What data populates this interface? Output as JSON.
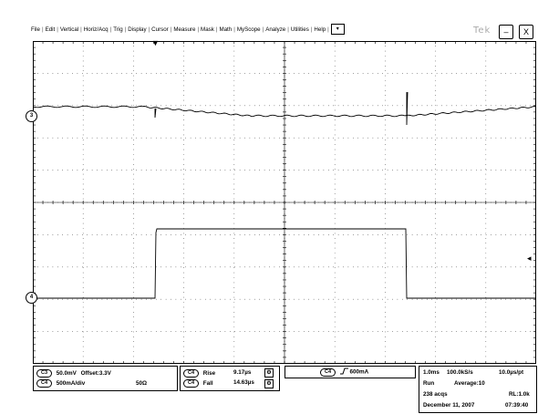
{
  "menu": {
    "items": [
      "File",
      "Edit",
      "Vertical",
      "Horiz/Acq",
      "Trig",
      "Display",
      "Cursor",
      "Measure",
      "Mask",
      "Math",
      "MyScope",
      "Analyze",
      "Utilities",
      "Help"
    ],
    "dropdown_glyph": "▾"
  },
  "brand": "Tek",
  "window_buttons": {
    "minimize": "–",
    "close": "X"
  },
  "markers": {
    "ch3": "3",
    "ch4": "4",
    "trigger_position": "▼",
    "trigger_level": "◂"
  },
  "colors": {
    "trace": "#000000",
    "grid": "#000000",
    "background": "#ffffff"
  },
  "channels": {
    "c3": {
      "tag": "C3",
      "scale": "50.0mV",
      "offset": "Offset:3.3V"
    },
    "c4": {
      "tag": "C4",
      "scale": "500mA/div",
      "impedance": "50Ω"
    }
  },
  "measurements": [
    {
      "tag": "C4",
      "name": "Rise",
      "value": "9.17µs"
    },
    {
      "tag": "C4",
      "name": "Fall",
      "value": "14.63µs"
    }
  ],
  "trigger": {
    "tag": "C4",
    "slope_icon": "rising-edge-icon",
    "level": "600mA"
  },
  "acquisition": {
    "timebase": "1.0ms",
    "sample_rate": "100.0kS/s",
    "resolution": "10.0µs/pt",
    "state": "Run",
    "mode": "Average:10",
    "acqs": "238 acqs",
    "record_length": "RL:1.0k",
    "date": "December 11, 2007",
    "time": "07:39:40"
  }
}
